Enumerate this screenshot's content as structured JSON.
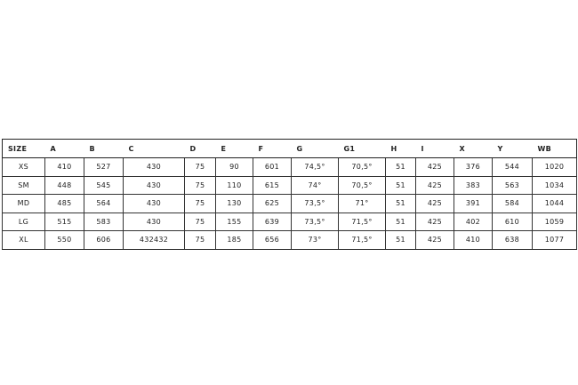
{
  "table": {
    "headers": [
      "SIZE",
      "A",
      "B",
      "C",
      "D",
      "E",
      "F",
      "G",
      "G1",
      "H",
      "I",
      "X",
      "Y",
      "WB"
    ],
    "rows": [
      [
        "XS",
        "410",
        "527",
        "430",
        "75",
        "90",
        "601",
        "74,5°",
        "70,5°",
        "51",
        "425",
        "376",
        "544",
        "1020"
      ],
      [
        "SM",
        "448",
        "545",
        "430",
        "75",
        "110",
        "615",
        "74°",
        "70,5°",
        "51",
        "425",
        "383",
        "563",
        "1034"
      ],
      [
        "MD",
        "485",
        "564",
        "430",
        "75",
        "130",
        "625",
        "73,5°",
        "71°",
        "51",
        "425",
        "391",
        "584",
        "1044"
      ],
      [
        "LG",
        "515",
        "583",
        "430",
        "75",
        "155",
        "639",
        "73,5°",
        "71,5°",
        "51",
        "425",
        "402",
        "610",
        "1059"
      ],
      [
        "XL",
        "550",
        "606",
        "432432",
        "75",
        "185",
        "656",
        "73°",
        "71,5°",
        "51",
        "425",
        "410",
        "638",
        "1077"
      ]
    ]
  }
}
